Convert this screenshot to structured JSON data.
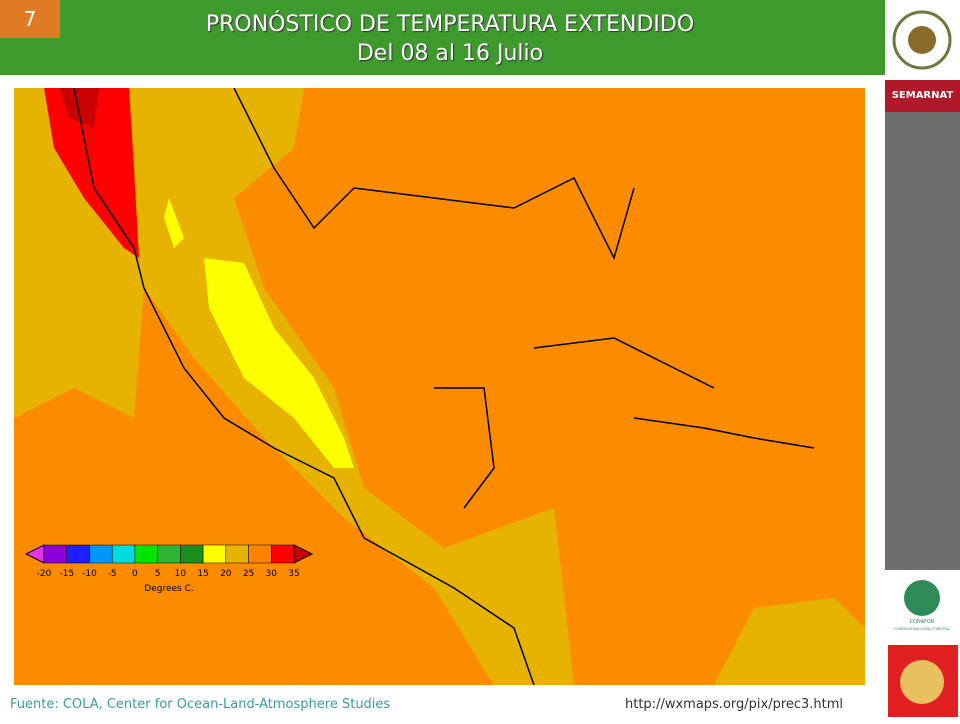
{
  "slide": {
    "number": "7",
    "title": "PRONÓSTICO DE TEMPERATURA EXTENDIDO",
    "subtitle": "Del 08 al 16 Julio"
  },
  "sidebar": {
    "agency": "SEMARNAT",
    "logo_label": "CONAFOR",
    "logo_caption": "COMISIÓN NACIONAL FORESTAL"
  },
  "legend": {
    "labels": [
      "-20",
      "-15",
      "-10",
      "-5",
      "0",
      "5",
      "10",
      "15",
      "20",
      "25",
      "30",
      "35"
    ],
    "colors": [
      "#e632e6",
      "#8c00dc",
      "#1e1eff",
      "#0096ff",
      "#00dcdc",
      "#00e600",
      "#32b432",
      "#1e8c1e",
      "#ffff00",
      "#e6b400",
      "#ff8200",
      "#ff0000",
      "#c80000"
    ],
    "unit": "Degrees C."
  },
  "footer": {
    "source": "Fuente: COLA, Center  for Ocean-Land-Atmosphere Studies",
    "url": "http://wxmaps.org/pix/prec3.html"
  }
}
